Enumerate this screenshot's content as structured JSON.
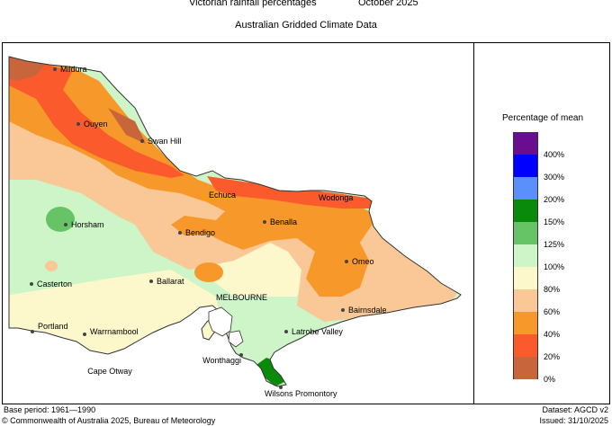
{
  "header": {
    "title": "Victorian rainfall percentages",
    "period": "October 2025",
    "subtitle": "Australian Gridded Climate Data"
  },
  "legend": {
    "title": "Percentage of mean",
    "bands": [
      {
        "color": "#6a0d91"
      },
      {
        "color": "#0000ff"
      },
      {
        "color": "#5b8ff9"
      },
      {
        "color": "#0a8a0a"
      },
      {
        "color": "#66c466"
      },
      {
        "color": "#cdf5c8"
      },
      {
        "color": "#fdf7cc"
      },
      {
        "color": "#f9c896"
      },
      {
        "color": "#f7982a"
      },
      {
        "color": "#fa5a2c"
      },
      {
        "color": "#c9653a"
      }
    ],
    "labels": [
      "400%",
      "300%",
      "200%",
      "150%",
      "125%",
      "100%",
      "80%",
      "60%",
      "40%",
      "20%",
      "0%"
    ]
  },
  "places": [
    {
      "name": "Mildura"
    },
    {
      "name": "Ouyen"
    },
    {
      "name": "Swan Hill"
    },
    {
      "name": "Echuca"
    },
    {
      "name": "Wodonga"
    },
    {
      "name": "Horsham"
    },
    {
      "name": "Benalla"
    },
    {
      "name": "Bendigo"
    },
    {
      "name": "Omeo"
    },
    {
      "name": "Casterton"
    },
    {
      "name": "Ballarat"
    },
    {
      "name": "MELBOURNE"
    },
    {
      "name": "Bairnsdale"
    },
    {
      "name": "Portland"
    },
    {
      "name": "Warrnambool"
    },
    {
      "name": "Latrobe Valley"
    },
    {
      "name": "Cape Otway"
    },
    {
      "name": "Wonthaggi"
    },
    {
      "name": "Wilsons Promontory"
    }
  ],
  "footer": {
    "base_period": "Base period: 1961—1990",
    "dataset": "Dataset: AGCD v2",
    "copyright": "© Commonwealth of Australia 2025, Bureau of Meteorology",
    "issued": "Issued: 31/10/2025"
  }
}
